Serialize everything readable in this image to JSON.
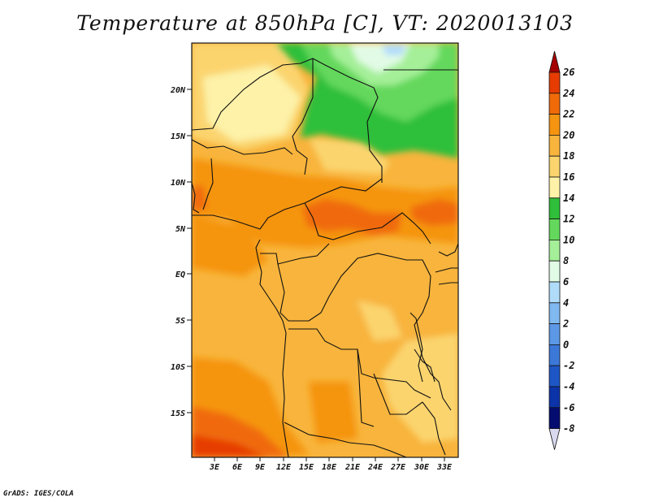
{
  "title": "Temperature at 850hPa [C], VT: 2020013103",
  "credit": "GrADS: IGES/COLA",
  "map": {
    "lat_labels": [
      "20N",
      "15N",
      "10N",
      "5N",
      "EQ",
      "5S",
      "10S",
      "15S"
    ],
    "lon_labels": [
      "3E",
      "6E",
      "9E",
      "12E",
      "15E",
      "18E",
      "21E",
      "24E",
      "27E",
      "30E",
      "33E"
    ]
  },
  "colorbar": {
    "labels": [
      "26",
      "24",
      "22",
      "20",
      "18",
      "16",
      "14",
      "12",
      "10",
      "8",
      "6",
      "4",
      "2",
      "0",
      "-2",
      "-4",
      "-6",
      "-8"
    ],
    "colors": [
      "#a50000",
      "#e63c00",
      "#f06a0a",
      "#f59410",
      "#f8b43c",
      "#fbd46e",
      "#fdf2a8",
      "#2fbf3a",
      "#64d85c",
      "#a4ef98",
      "#e2fbe6",
      "#b0dcfa",
      "#80b8f0",
      "#5c98e6",
      "#3c78d8",
      "#1e56c6",
      "#0c34a8",
      "#050c70",
      "#d8d8ee"
    ]
  }
}
